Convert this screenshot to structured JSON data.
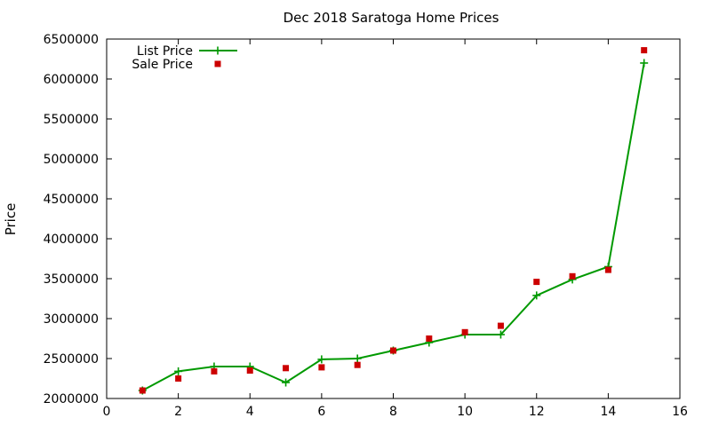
{
  "chart_data": {
    "type": "line",
    "title": "Dec 2018 Saratoga Home Prices",
    "xlabel": "",
    "ylabel": "Price",
    "xlim": [
      0,
      16
    ],
    "ylim": [
      2000000,
      6500000
    ],
    "x_ticks": [
      0,
      2,
      4,
      6,
      8,
      10,
      12,
      14,
      16
    ],
    "y_ticks": [
      2000000,
      2500000,
      3000000,
      3500000,
      4000000,
      4500000,
      5000000,
      5500000,
      6000000,
      6500000
    ],
    "grid": false,
    "legend_position": "top-left",
    "series": [
      {
        "name": "List Price",
        "style": "line-with-plus-markers",
        "color": "#009900",
        "x": [
          1,
          2,
          3,
          4,
          5,
          6,
          7,
          8,
          9,
          10,
          11,
          12,
          13,
          14,
          15
        ],
        "values": [
          2100000,
          2340000,
          2400000,
          2400000,
          2200000,
          2490000,
          2500000,
          2600000,
          2700000,
          2800000,
          2800000,
          3290000,
          3490000,
          3650000,
          6200000
        ]
      },
      {
        "name": "Sale Price",
        "style": "square-markers",
        "color": "#cc0000",
        "x": [
          1,
          2,
          3,
          4,
          5,
          6,
          7,
          8,
          9,
          10,
          11,
          12,
          13,
          14,
          15
        ],
        "values": [
          2100000,
          2250000,
          2340000,
          2350000,
          2380000,
          2390000,
          2420000,
          2600000,
          2750000,
          2830000,
          2910000,
          3460000,
          3530000,
          3610000,
          6360000
        ]
      }
    ]
  }
}
